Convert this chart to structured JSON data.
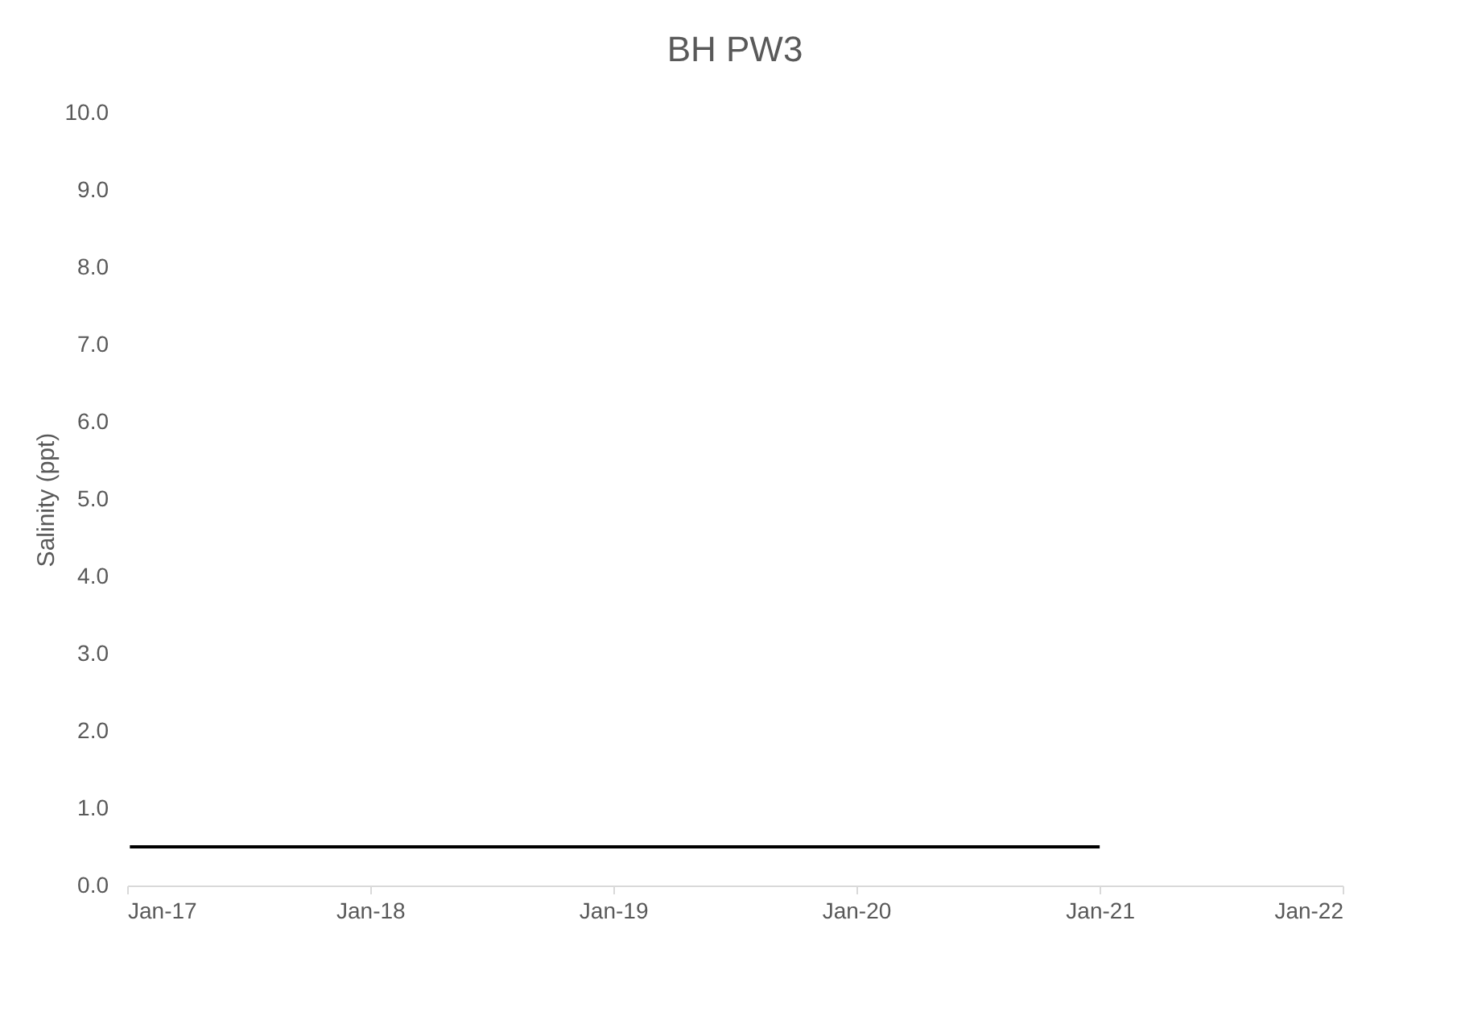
{
  "chart_data": {
    "type": "line",
    "title": "BH PW3",
    "ylabel": "Salinity (ppt)",
    "series": [
      {
        "color": "#000000",
        "x": [
          "2017-01-05",
          "2021-01-01"
        ],
        "values": [
          0.5,
          0.5
        ]
      }
    ],
    "xlim": [
      "2017-01-01",
      "2022-01-01"
    ],
    "xticks": [
      {
        "value": "2017-01-01",
        "label": "Jan-17"
      },
      {
        "value": "2018-01-01",
        "label": "Jan-18"
      },
      {
        "value": "2019-01-01",
        "label": "Jan-19"
      },
      {
        "value": "2020-01-01",
        "label": "Jan-20"
      },
      {
        "value": "2021-01-01",
        "label": "Jan-21"
      },
      {
        "value": "2022-01-01",
        "label": "Jan-22"
      }
    ],
    "ylim": [
      0,
      10
    ],
    "yticks": [
      {
        "value": 0,
        "label": "0.0"
      },
      {
        "value": 1,
        "label": "1.0"
      },
      {
        "value": 2,
        "label": "2.0"
      },
      {
        "value": 3,
        "label": "3.0"
      },
      {
        "value": 4,
        "label": "4.0"
      },
      {
        "value": 5,
        "label": "5.0"
      },
      {
        "value": 6,
        "label": "6.0"
      },
      {
        "value": 7,
        "label": "7.0"
      },
      {
        "value": 8,
        "label": "8.0"
      },
      {
        "value": 9,
        "label": "9.0"
      },
      {
        "value": 10,
        "label": "10.0"
      }
    ],
    "grid": false,
    "marker": "none",
    "line_style": "solid"
  }
}
